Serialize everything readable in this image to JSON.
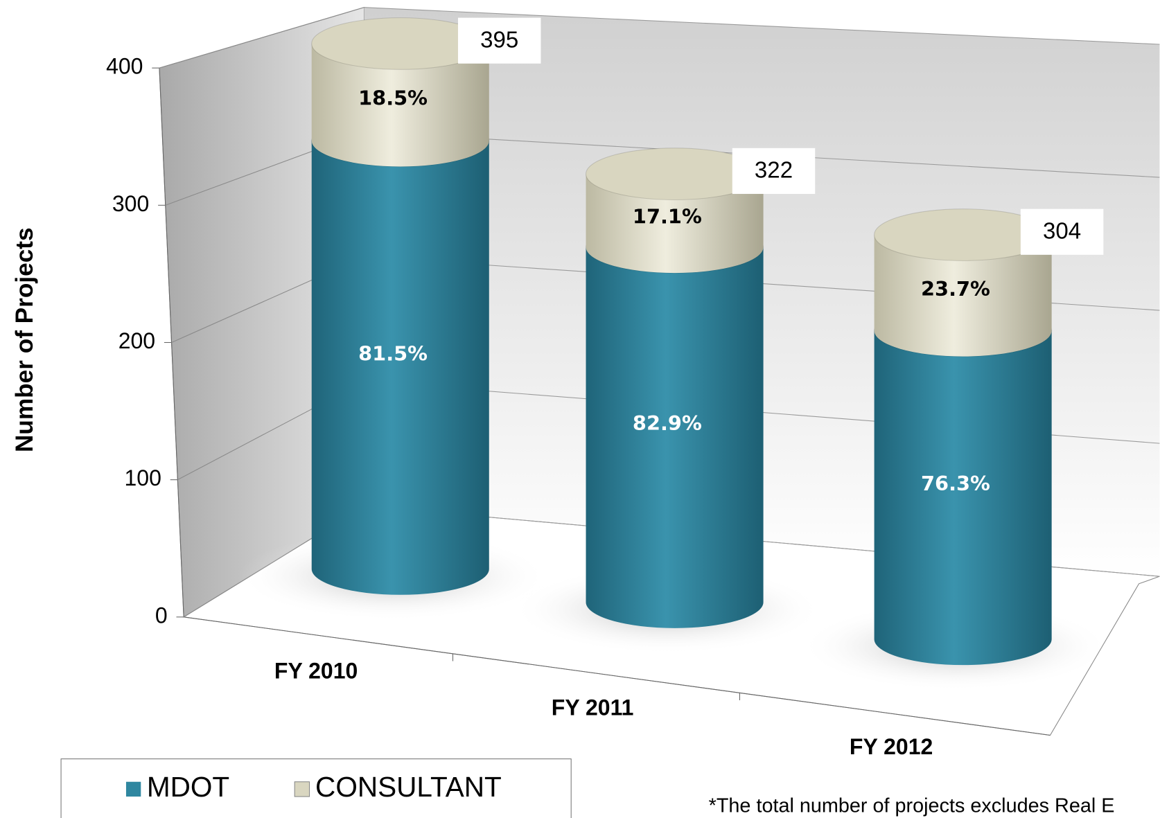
{
  "chart_data": {
    "type": "bar3d-stacked",
    "y_label": "Number of Projects",
    "categories": [
      "FY 2010",
      "FY 2011",
      "FY 2012"
    ],
    "series": [
      {
        "name": "MDOT",
        "color": "#2f87a0",
        "values": [
          322,
          267,
          232
        ],
        "share_labels": [
          "81.5%",
          "82.9%",
          "76.3%"
        ]
      },
      {
        "name": "CONSULTANT",
        "color": "#d9d6c0",
        "values": [
          73,
          55,
          72
        ],
        "share_labels": [
          "18.5%",
          "17.1%",
          "23.7%"
        ]
      }
    ],
    "totals": [
      395,
      322,
      304
    ],
    "ylim": [
      0,
      400
    ],
    "yticks": [
      0,
      100,
      200,
      300,
      400
    ],
    "grid": true,
    "legend": "bottom-left",
    "footnote": "*The total number of projects excludes Real E"
  }
}
